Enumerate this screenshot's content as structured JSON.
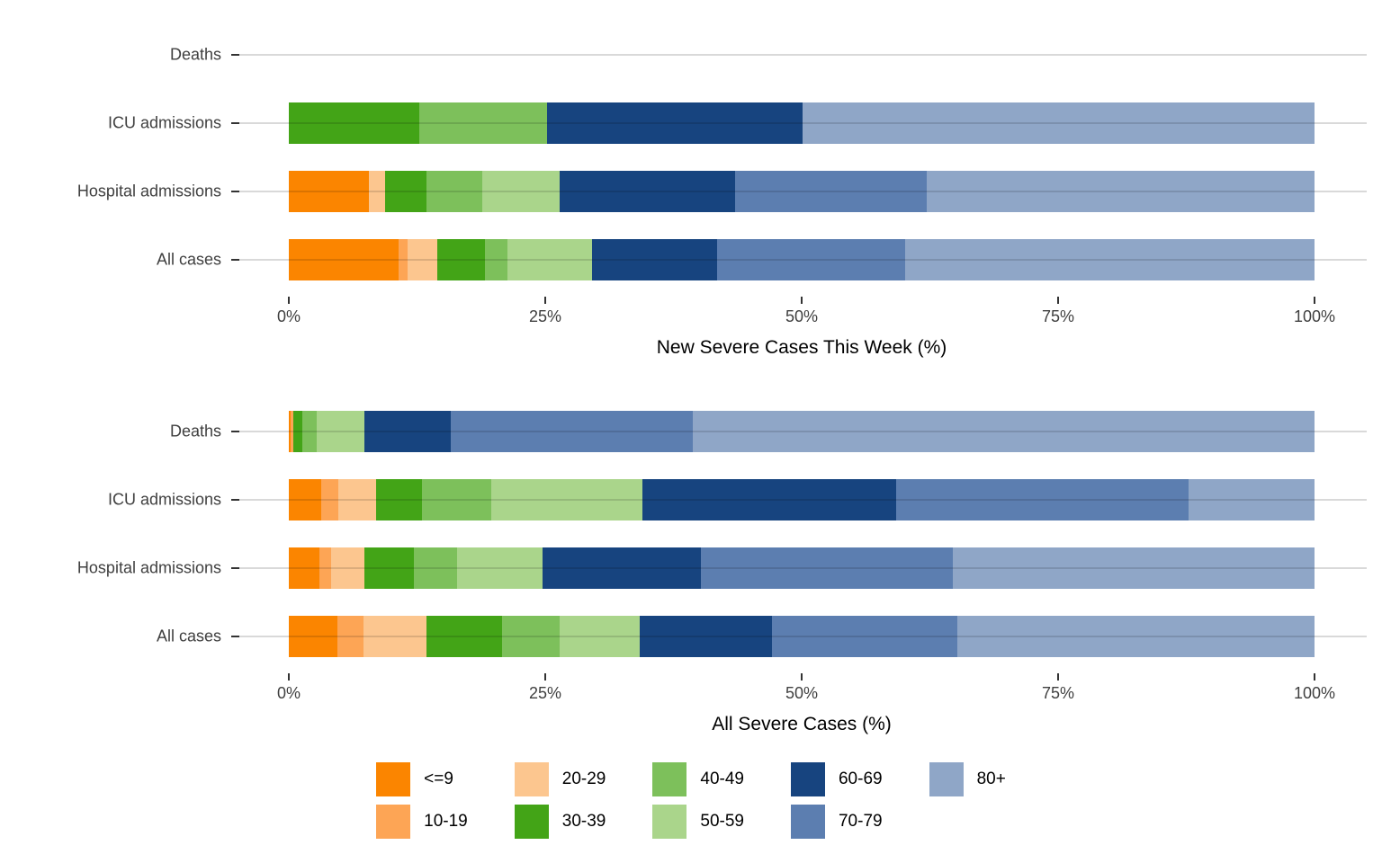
{
  "chart_data": [
    {
      "type": "bar",
      "orientation": "horizontal",
      "stacked": true,
      "xlabel": "New Severe Cases This Week (%)",
      "xlim": [
        0,
        100
      ],
      "x_ticks": [
        "0%",
        "25%",
        "50%",
        "75%",
        "100%"
      ],
      "grid": "horizontal-major",
      "categories": [
        "Deaths",
        "ICU admissions",
        "Hospital admissions",
        "All cases"
      ],
      "series": [
        {
          "name": "<=9",
          "color": "#FB8500",
          "values": [
            0,
            0,
            7.8,
            10.7
          ]
        },
        {
          "name": "10-19",
          "color": "#FDA555",
          "values": [
            0,
            0,
            0,
            0.9
          ]
        },
        {
          "name": "20-29",
          "color": "#FCC68F",
          "values": [
            0,
            0,
            1.6,
            2.9
          ]
        },
        {
          "name": "30-39",
          "color": "#43A417",
          "values": [
            0,
            12.7,
            4.0,
            4.6
          ]
        },
        {
          "name": "40-49",
          "color": "#7DC05B",
          "values": [
            0,
            12.5,
            5.5,
            2.2
          ]
        },
        {
          "name": "50-59",
          "color": "#AAD58B",
          "values": [
            0,
            0,
            7.5,
            8.3
          ]
        },
        {
          "name": "60-69",
          "color": "#17447F",
          "values": [
            0,
            24.9,
            17.1,
            12.2
          ]
        },
        {
          "name": "70-79",
          "color": "#5C7EB0",
          "values": [
            0,
            0,
            18.7,
            18.3
          ]
        },
        {
          "name": "80+",
          "color": "#8FA6C7",
          "values": [
            0,
            49.9,
            37.8,
            39.9
          ]
        }
      ]
    },
    {
      "type": "bar",
      "orientation": "horizontal",
      "stacked": true,
      "xlabel": "All Severe Cases (%)",
      "xlim": [
        0,
        100
      ],
      "x_ticks": [
        "0%",
        "25%",
        "50%",
        "75%",
        "100%"
      ],
      "grid": "horizontal-major",
      "categories": [
        "Deaths",
        "ICU admissions",
        "Hospital admissions",
        "All cases"
      ],
      "series": [
        {
          "name": "<=9",
          "color": "#FB8500",
          "values": [
            0.2,
            3.2,
            3.0,
            4.7
          ]
        },
        {
          "name": "10-19",
          "color": "#FDA555",
          "values": [
            0.25,
            1.6,
            1.1,
            2.6
          ]
        },
        {
          "name": "20-29",
          "color": "#FCC68F",
          "values": [
            0,
            3.7,
            3.3,
            6.1
          ]
        },
        {
          "name": "30-39",
          "color": "#43A417",
          "values": [
            0.85,
            4.5,
            4.8,
            7.4
          ]
        },
        {
          "name": "40-49",
          "color": "#7DC05B",
          "values": [
            1.4,
            6.7,
            4.2,
            5.6
          ]
        },
        {
          "name": "50-59",
          "color": "#AAD58B",
          "values": [
            4.7,
            14.8,
            8.3,
            7.8
          ]
        },
        {
          "name": "60-69",
          "color": "#17447F",
          "values": [
            8.4,
            24.7,
            15.5,
            12.9
          ]
        },
        {
          "name": "70-79",
          "color": "#5C7EB0",
          "values": [
            23.6,
            28.5,
            24.5,
            18.1
          ]
        },
        {
          "name": "80+",
          "color": "#8FA6C7",
          "values": [
            60.6,
            12.3,
            35.3,
            34.8
          ]
        }
      ]
    }
  ],
  "legend": {
    "columns": [
      [
        "<=9",
        "10-19"
      ],
      [
        "20-29",
        "30-39"
      ],
      [
        "40-49",
        "50-59"
      ],
      [
        "60-69",
        "70-79"
      ],
      [
        "80+"
      ]
    ]
  },
  "style": {
    "gridline_color": "#d9d9d9",
    "tick_color": "#333333",
    "label_color": "#404040",
    "title_color": "#000000",
    "background": "#ffffff"
  }
}
